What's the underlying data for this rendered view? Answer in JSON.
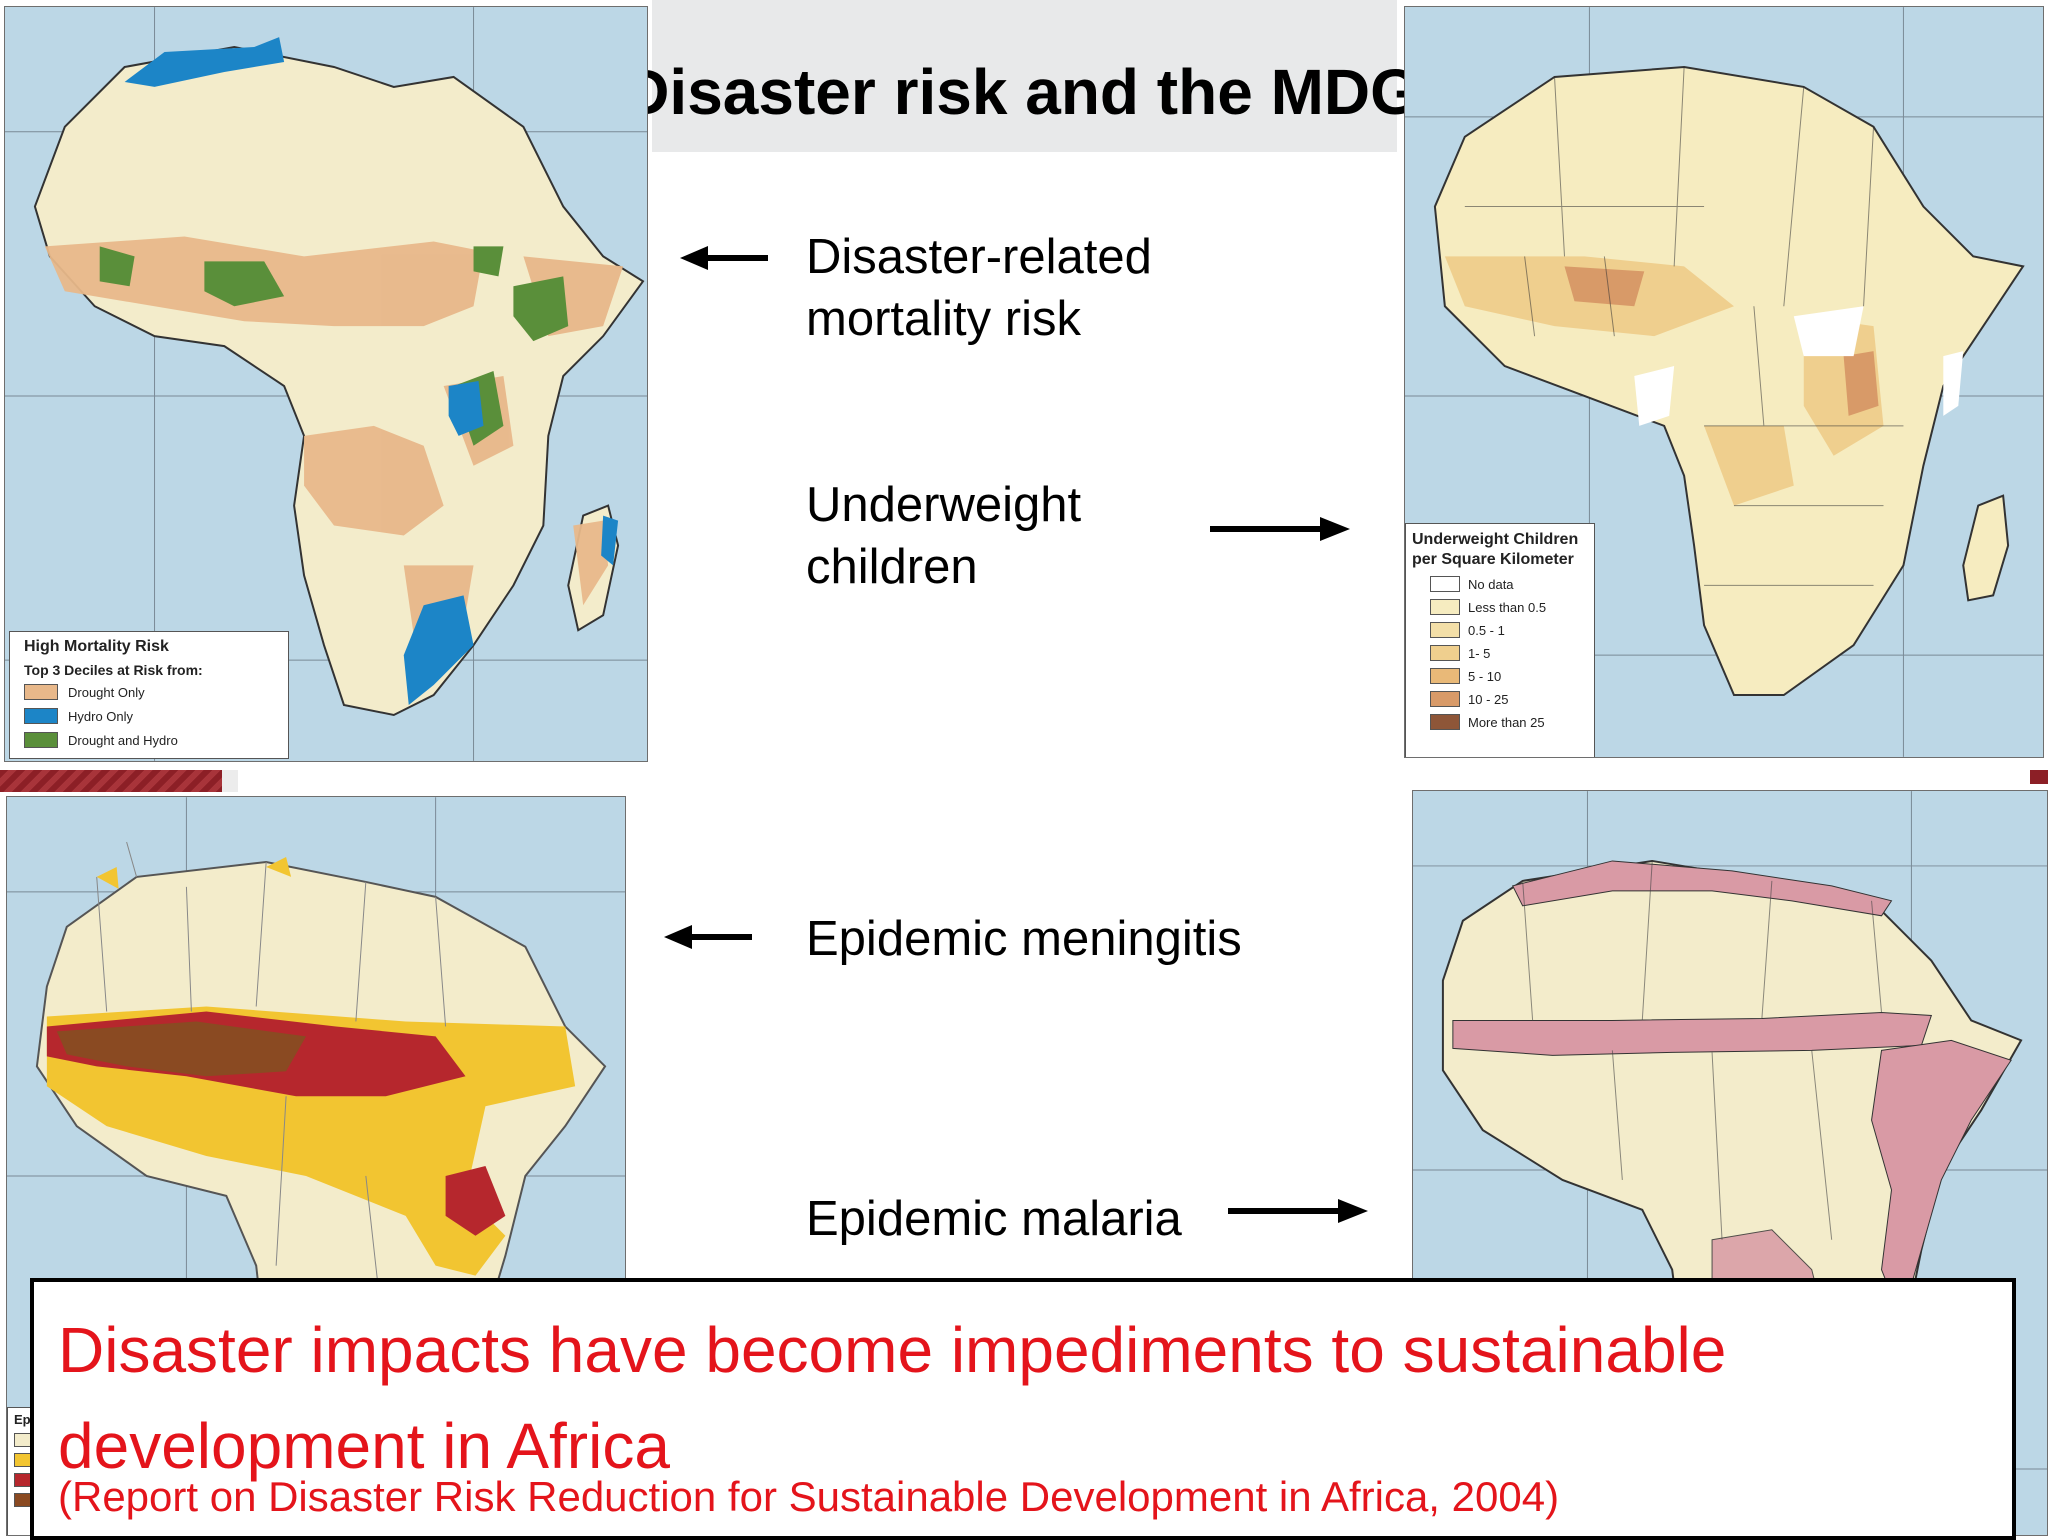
{
  "slide": {
    "title": "Disaster risk and the MDGs:",
    "labels": {
      "mortality": "Disaster-related mortality risk",
      "mortality_line1": "Disaster-related",
      "mortality_line2": "mortality risk",
      "underweight_line1": "Underweight",
      "underweight_line2": "children",
      "meningitis": "Epidemic meningitis",
      "malaria": "Epidemic malaria"
    },
    "message": {
      "main": "Disaster impacts have become impediments to sustainable development in Africa",
      "source": "(Report on Disaster Risk Reduction for Sustainable Development in Africa, 2004)"
    }
  },
  "maps": {
    "mortality": {
      "legend_title": "High Mortality Risk",
      "legend_subtitle": "Top 3 Deciles at Risk from:",
      "items": [
        {
          "label": "Drought Only",
          "color": "#e8b88a"
        },
        {
          "label": "Hydro Only",
          "color": "#1c85c7"
        },
        {
          "label": "Drought and Hydro",
          "color": "#5a8f3a"
        }
      ]
    },
    "underweight": {
      "legend_title_line1": "Underweight Children",
      "legend_title_line2": "per Square Kilometer",
      "items": [
        {
          "label": "No data",
          "color": "#ffffff"
        },
        {
          "label": "Less than 0.5",
          "color": "#f6ecc0"
        },
        {
          "label": "0.5 - 1",
          "color": "#f3dfa8"
        },
        {
          "label": "1- 5",
          "color": "#efcf8e"
        },
        {
          "label": "5 - 10",
          "color": "#e9b978"
        },
        {
          "label": "10 - 25",
          "color": "#d89a68"
        },
        {
          "label": "More than 25",
          "color": "#8e5638"
        }
      ]
    },
    "meningitis": {
      "legend_fragment": "Ep"
    },
    "colors": {
      "land": "#f3eccb",
      "ocean": "#bcd7e6",
      "meningitis_high": "#b6272d",
      "meningitis_mid": "#f2c531",
      "meningitis_dark": "#8a4a22",
      "malaria": "#d99aa5",
      "message_text": "#e4141b"
    }
  }
}
